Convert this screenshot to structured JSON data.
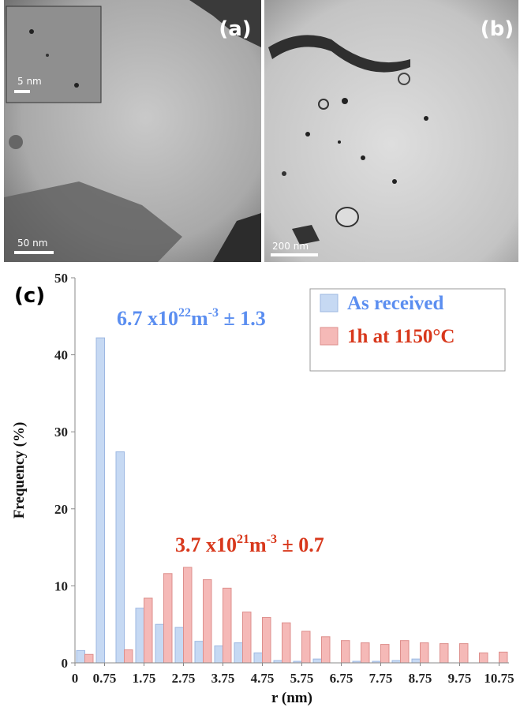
{
  "panels": [
    {
      "label": "(a)",
      "scale_bar": "50 nm",
      "inset_scale_bar": "5 nm"
    },
    {
      "label": "(b)",
      "scale_bar": "200 nm"
    }
  ],
  "chart_data": {
    "type": "bar",
    "panel_label": "(c)",
    "xlabel": "r (nm)",
    "ylabel": "Frequency (%)",
    "x": [
      0.25,
      0.75,
      1.25,
      1.75,
      2.25,
      2.75,
      3.25,
      3.75,
      4.25,
      4.75,
      5.25,
      5.75,
      6.25,
      6.75,
      7.25,
      7.75,
      8.25,
      8.75,
      9.25,
      9.75,
      10.25,
      10.75
    ],
    "xlim": [
      0,
      11
    ],
    "xticks": [
      0,
      0.75,
      1.75,
      2.75,
      3.75,
      4.75,
      5.75,
      6.75,
      7.75,
      8.75,
      9.75,
      10.75
    ],
    "ylim": [
      0,
      50
    ],
    "yticks": [
      0,
      10,
      20,
      30,
      40,
      50
    ],
    "legend": "upper right",
    "series": [
      {
        "name": "As received",
        "color": "#c6d9f3",
        "edgecolor": "#9db8e2",
        "values": [
          1.6,
          42.2,
          27.4,
          7.1,
          5.0,
          4.6,
          2.8,
          2.2,
          2.6,
          1.3,
          0.3,
          0.2,
          0.5,
          0,
          0.2,
          0.2,
          0.3,
          0.5,
          0,
          0,
          0,
          0
        ]
      },
      {
        "name": "1h at 1150°C",
        "color": "#f5b9b7",
        "edgecolor": "#dd8f8c",
        "values": [
          1.1,
          0,
          1.7,
          8.4,
          11.6,
          12.4,
          10.8,
          9.7,
          6.6,
          5.9,
          5.2,
          4.1,
          3.4,
          2.9,
          2.6,
          2.4,
          2.9,
          2.6,
          2.5,
          2.5,
          1.3,
          1.4
        ]
      }
    ],
    "annotations": [
      {
        "color": "#5b8ef0",
        "parts": [
          {
            "text": "6.7 x10"
          },
          {
            "text": "22",
            "sup": true
          },
          {
            "text": "m"
          },
          {
            "text": "-3",
            "sup": true
          },
          {
            "text": " ± 1.3"
          }
        ]
      },
      {
        "color": "#d8381c",
        "parts": [
          {
            "text": "3.7 x10"
          },
          {
            "text": "21",
            "sup": true
          },
          {
            "text": "m"
          },
          {
            "text": "-3",
            "sup": true
          },
          {
            "text": " ± 0.7"
          }
        ]
      }
    ]
  }
}
